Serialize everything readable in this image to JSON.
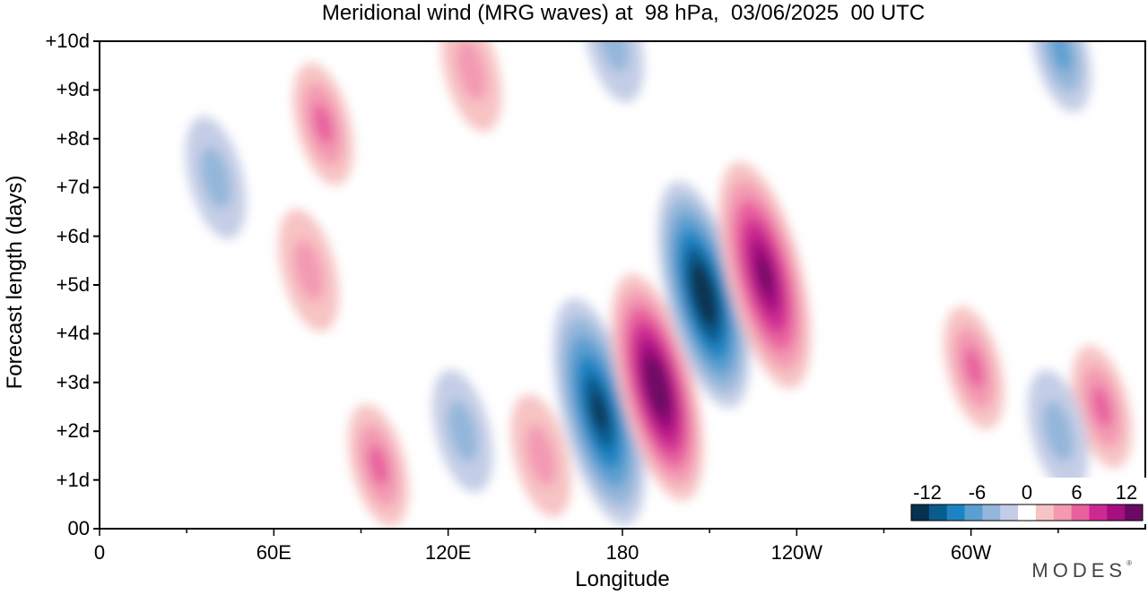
{
  "header": {
    "title": "Meridional wind (MRG waves) at  98 hPa,  03/06/2025  00 UTC"
  },
  "watermark": "MODES",
  "chart_data": {
    "type": "heatmap",
    "title": "Meridional wind (MRG waves) at  98 hPa,  03/06/2025  00 UTC",
    "xlabel": "Longitude",
    "ylabel": "Forecast length (days)",
    "x_tick_labels": [
      "0",
      "60E",
      "120E",
      "180",
      "120W",
      "60W"
    ],
    "y_tick_labels": [
      "00",
      "+1d",
      "+2d",
      "+3d",
      "+4d",
      "+5d",
      "+6d",
      "+7d",
      "+8d",
      "+9d",
      "+10d"
    ],
    "xlim": [
      0,
      360
    ],
    "ylim": [
      0,
      10
    ],
    "colorbar": {
      "tick_labels": [
        "-12",
        "-6",
        "0",
        "6",
        "12"
      ],
      "levels": [
        -14,
        -12,
        -10,
        -8,
        -6,
        -4,
        -2,
        2,
        4,
        6,
        8,
        10,
        12,
        14
      ],
      "colors": [
        "#08304f",
        "#0a5b8e",
        "#1f83c2",
        "#5b9fd0",
        "#93b6da",
        "#c4cde6",
        "#ffffff",
        "#f7c3c3",
        "#f39ab3",
        "#e8609e",
        "#cd2a91",
        "#a50f80",
        "#6a0a63"
      ],
      "placement": "bottom-right"
    },
    "features": [
      {
        "lon": 172,
        "day": 2.4,
        "value": -13
      },
      {
        "lon": 192,
        "day": 2.9,
        "value": 14
      },
      {
        "lon": 208,
        "day": 4.8,
        "value": -14
      },
      {
        "lon": 229,
        "day": 5.2,
        "value": 13
      },
      {
        "lon": 96,
        "day": 1.3,
        "value": 7
      },
      {
        "lon": 152,
        "day": 1.5,
        "value": 5
      },
      {
        "lon": 125,
        "day": 2.0,
        "value": -5
      },
      {
        "lon": 72,
        "day": 5.3,
        "value": 5
      },
      {
        "lon": 77,
        "day": 8.3,
        "value": 6
      },
      {
        "lon": 128,
        "day": 9.4,
        "value": 5
      },
      {
        "lon": 301,
        "day": 3.3,
        "value": 6
      },
      {
        "lon": 345,
        "day": 2.5,
        "value": 6
      },
      {
        "lon": 331,
        "day": 9.8,
        "value": -6
      },
      {
        "lon": 330,
        "day": 2.0,
        "value": -5
      },
      {
        "lon": 40,
        "day": 7.2,
        "value": -4
      },
      {
        "lon": 177,
        "day": 10.0,
        "value": -4
      }
    ]
  }
}
